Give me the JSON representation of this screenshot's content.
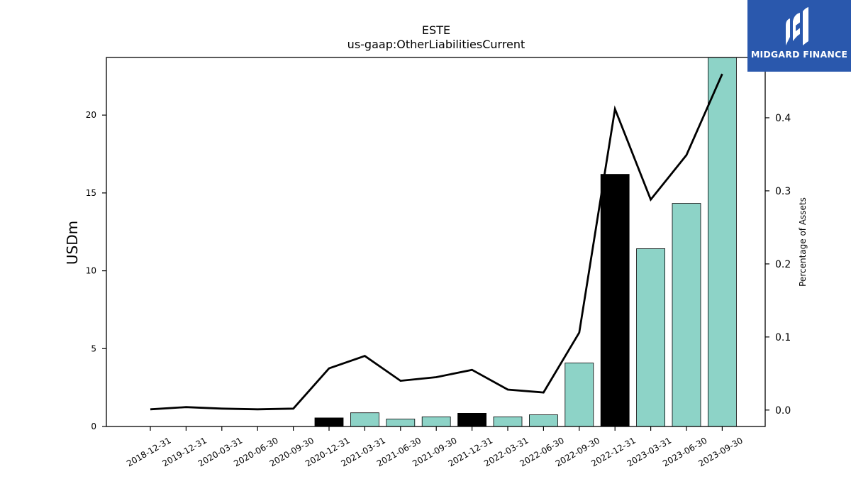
{
  "logo": {
    "text": "MIDGARD FINANCE",
    "icon": "midgard-finance-logo-icon",
    "background": "#2a58ad"
  },
  "chart_data": {
    "type": "bar",
    "title": "ESTE",
    "subtitle": "us-gaap:OtherLiabilitiesCurrent",
    "ylabel": "USDm",
    "y2label": "Percentage of Assets",
    "categories": [
      "2018-12-31",
      "2019-12-31",
      "2020-03-31",
      "2020-06-30",
      "2020-09-30",
      "2020-12-31",
      "2021-03-31",
      "2021-06-30",
      "2021-09-30",
      "2021-12-31",
      "2022-03-31",
      "2022-06-30",
      "2022-09-30",
      "2022-12-31",
      "2023-03-31",
      "2023-06-30",
      "2023-09-30"
    ],
    "series": [
      {
        "type": "bar",
        "axis": "left",
        "values": [
          0,
          0,
          0,
          0,
          0,
          0.55,
          0.88,
          0.48,
          0.62,
          0.85,
          0.62,
          0.75,
          4.08,
          16.2,
          11.42,
          14.33,
          23.7
        ],
        "colors": [
          "#8dd3c7",
          "#8dd3c7",
          "#8dd3c7",
          "#8dd3c7",
          "#8dd3c7",
          "#000000",
          "#8dd3c7",
          "#8dd3c7",
          "#8dd3c7",
          "#000000",
          "#8dd3c7",
          "#8dd3c7",
          "#8dd3c7",
          "#000000",
          "#8dd3c7",
          "#8dd3c7",
          "#8dd3c7"
        ]
      },
      {
        "type": "line",
        "axis": "right",
        "color": "#000000",
        "values": [
          0.001,
          0.004,
          0.002,
          0.001,
          0.002,
          0.057,
          0.074,
          0.04,
          0.045,
          0.055,
          0.028,
          0.024,
          0.106,
          0.412,
          0.288,
          0.349,
          0.46
        ]
      }
    ],
    "ylim": [
      0,
      23.7
    ],
    "yticks": [
      0,
      5,
      10,
      15,
      20
    ],
    "y2lim": [
      -0.0225,
      0.4825
    ],
    "y2ticks": [
      0.0,
      0.1,
      0.2,
      0.3,
      0.4
    ],
    "grid": false,
    "legend": "none"
  }
}
